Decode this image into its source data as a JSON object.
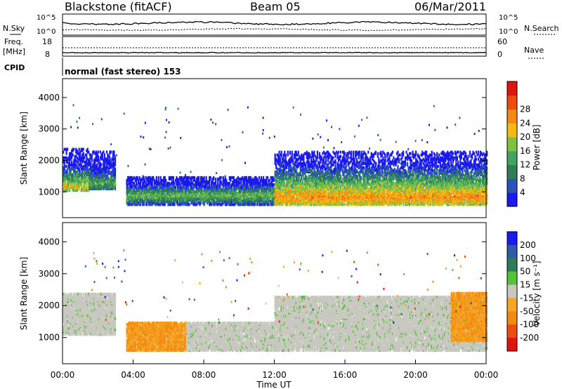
{
  "header": {
    "station": "Blackstone (fitACF)",
    "beam": "Beam 05",
    "date": "06/Mar/2011"
  },
  "top_panel": {
    "left_label_1": "N.Sky",
    "left_label_2": "Freq.",
    "left_label_3": "[MHz]",
    "left_label_4": "CPID",
    "right_label_1": "N.Search",
    "right_label_2": "Nave",
    "noise_ticks_left": [
      "10^5",
      "10^0"
    ],
    "noise_ticks_right": [
      "10^5",
      "10^0"
    ],
    "freq_ticks_left": [
      "18",
      "8"
    ],
    "nave_ticks_right": [
      "60",
      "0"
    ],
    "cpid_text": "normal (fast stereo) 153"
  },
  "colors": {
    "power_scale": [
      "#1a1aee",
      "#2a52b8",
      "#2e7d55",
      "#43a35e",
      "#7fc241",
      "#f5b916",
      "#f28a13",
      "#ee4b10",
      "#e0150f"
    ],
    "velocity_scale": [
      "#1a1aee",
      "#2e5aa8",
      "#2e7d55",
      "#55c23a",
      "#c8c8c0",
      "#f5a623",
      "#f28a13",
      "#ee4b10",
      "#e0150f"
    ],
    "ground_scatter": "#c8c8c0"
  },
  "chart_data": [
    {
      "type": "heatmap",
      "panel": "power",
      "ylabel": "Slant Range [km]",
      "ylim": [
        180,
        4600
      ],
      "yticks": [
        "1000",
        "2000",
        "3000",
        "4000"
      ],
      "colorbar_label": "Power [dB]",
      "colorbar_ticks": [
        "4",
        "8",
        "12",
        "16",
        "20",
        "24",
        "28"
      ],
      "colorbar_range": [
        0,
        30
      ],
      "regions": [
        {
          "t0": 0.0,
          "t1": 1.5,
          "r0": 1050,
          "r1": 2400,
          "core_r": 1180,
          "level": 18
        },
        {
          "t0": 1.5,
          "t1": 3.0,
          "r0": 1100,
          "r1": 2300,
          "core_r": 1300,
          "level": 12
        },
        {
          "t0": 3.6,
          "t1": 12.0,
          "r0": 600,
          "r1": 1500,
          "core_r": 900,
          "level": 14
        },
        {
          "t0": 12.0,
          "t1": 24.0,
          "r0": 600,
          "r1": 2300,
          "core_r": 850,
          "level": 22
        }
      ]
    },
    {
      "type": "heatmap",
      "panel": "velocity",
      "ylabel": "Slant Range [km]",
      "xlabel": "Time UT",
      "ylim": [
        180,
        4600
      ],
      "yticks": [
        "1000",
        "2000",
        "3000",
        "4000"
      ],
      "xticks": [
        "00:00",
        "04:00",
        "08:00",
        "12:00",
        "16:00",
        "20:00",
        "00:00"
      ],
      "colorbar_label": "Velocity [m s⁻¹]",
      "colorbar_ticks": [
        "200",
        "100",
        "50",
        "15",
        "-15",
        "-50",
        "-100",
        "-200"
      ],
      "regions": [
        {
          "t0": 0.0,
          "t1": 3.0,
          "r0": 1100,
          "r1": 2400,
          "kind": "ground"
        },
        {
          "t0": 3.6,
          "t1": 7.0,
          "r0": 600,
          "r1": 1500,
          "kind": "orange"
        },
        {
          "t0": 7.0,
          "t1": 12.0,
          "r0": 600,
          "r1": 1500,
          "kind": "ground"
        },
        {
          "t0": 12.0,
          "t1": 24.0,
          "r0": 600,
          "r1": 2300,
          "kind": "ground"
        },
        {
          "t0": 22.0,
          "t1": 24.0,
          "r0": 900,
          "r1": 2400,
          "kind": "orange"
        }
      ]
    }
  ]
}
